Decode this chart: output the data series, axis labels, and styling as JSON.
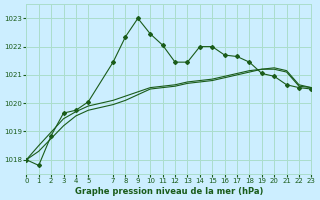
{
  "title": "Graphe pression niveau de la mer (hPa)",
  "bg_color": "#cceeff",
  "grid_color": "#aaddcc",
  "line_color": "#1a5c1a",
  "xlim": [
    0,
    23
  ],
  "ylim": [
    1017.5,
    1023.5
  ],
  "yticks": [
    1018,
    1019,
    1020,
    1021,
    1022,
    1023
  ],
  "xticks": [
    0,
    1,
    2,
    3,
    4,
    5,
    7,
    8,
    9,
    10,
    11,
    12,
    13,
    14,
    15,
    16,
    17,
    18,
    19,
    20,
    21,
    22,
    23
  ],
  "series1_x": [
    0,
    1,
    2,
    3,
    4,
    5,
    7,
    8,
    9,
    10,
    11,
    12,
    13,
    14,
    15,
    16,
    17,
    18,
    19,
    20,
    21,
    22,
    23
  ],
  "series1_y": [
    1018.0,
    1017.8,
    1018.85,
    1019.65,
    1019.75,
    1020.05,
    1021.45,
    1022.35,
    1023.0,
    1022.45,
    1022.05,
    1021.45,
    1021.45,
    1022.0,
    1022.0,
    1021.7,
    1021.65,
    1021.45,
    1021.05,
    1020.95,
    1020.65,
    1020.55,
    1020.5
  ],
  "series2_x": [
    0,
    1,
    3,
    4,
    5,
    7,
    8,
    9,
    10,
    11,
    12,
    13,
    14,
    15,
    16,
    17,
    18,
    19,
    20,
    21,
    22,
    23
  ],
  "series2_y": [
    1018.0,
    1018.3,
    1019.2,
    1019.55,
    1019.75,
    1019.95,
    1020.1,
    1020.3,
    1020.5,
    1020.55,
    1020.6,
    1020.7,
    1020.75,
    1020.8,
    1020.9,
    1021.0,
    1021.1,
    1021.2,
    1021.25,
    1021.15,
    1020.65,
    1020.55
  ],
  "series3_x": [
    0,
    1,
    3,
    4,
    5,
    7,
    8,
    9,
    10,
    11,
    12,
    13,
    14,
    15,
    16,
    17,
    18,
    19,
    20,
    21,
    22,
    23
  ],
  "series3_y": [
    1018.0,
    1018.5,
    1019.45,
    1019.7,
    1019.9,
    1020.1,
    1020.25,
    1020.4,
    1020.55,
    1020.6,
    1020.65,
    1020.75,
    1020.8,
    1020.85,
    1020.95,
    1021.05,
    1021.15,
    1021.2,
    1021.2,
    1021.1,
    1020.6,
    1020.55
  ]
}
